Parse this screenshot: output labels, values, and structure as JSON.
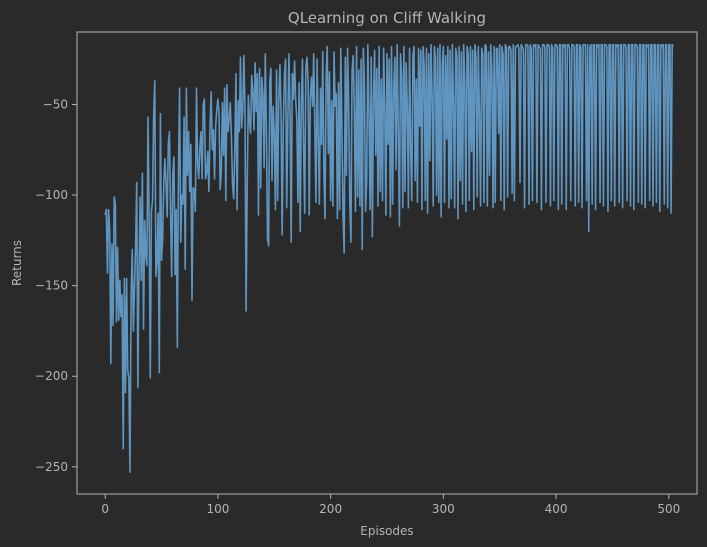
{
  "chart_data": {
    "type": "line",
    "title": "QLearning on Cliff Walking",
    "xlabel": "Episodes",
    "ylabel": "Returns",
    "xlim": [
      -25,
      525
    ],
    "ylim": [
      -265,
      -10
    ],
    "xticks": [
      0,
      100,
      200,
      300,
      400,
      500
    ],
    "yticks": [
      -250,
      -200,
      -150,
      -100,
      -50
    ],
    "grid": false,
    "legend": "none",
    "colors": {
      "background": "#2a2a2a",
      "axes": "#b4b4b4",
      "line": "#5f95bf"
    },
    "series": [
      {
        "values": [
          -111,
          -108,
          -143,
          -108,
          -119,
          -193,
          -127,
          -172,
          -101,
          -105,
          -170,
          -129,
          -169,
          -147,
          -167,
          -155,
          -240,
          -146,
          -209,
          -146,
          -197,
          -201,
          -253,
          -155,
          -130,
          -175,
          -152,
          -127,
          -93,
          -206,
          -143,
          -101,
          -147,
          -88,
          -174,
          -114,
          -133,
          -139,
          -57,
          -112,
          -201,
          -109,
          -103,
          -56,
          -37,
          -145,
          -136,
          -110,
          -198,
          -55,
          -136,
          -124,
          -93,
          -80,
          -94,
          -112,
          -72,
          -65,
          -110,
          -145,
          -88,
          -79,
          -144,
          -108,
          -184,
          -88,
          -41,
          -126,
          -100,
          -105,
          -57,
          -141,
          -41,
          -89,
          -65,
          -98,
          -72,
          -158,
          -96,
          -97,
          -109,
          -41,
          -82,
          -91,
          -74,
          -65,
          -91,
          -50,
          -47,
          -91,
          -88,
          -76,
          -98,
          -62,
          -43,
          -75,
          -64,
          -91,
          -62,
          -53,
          -47,
          -55,
          -97,
          -87,
          -49,
          -78,
          -41,
          -103,
          -39,
          -65,
          -58,
          -49,
          -69,
          -94,
          -102,
          -75,
          -33,
          -108,
          -48,
          -65,
          -24,
          -63,
          -54,
          -23,
          -51,
          -164,
          -94,
          -45,
          -59,
          -66,
          -34,
          -43,
          -64,
          -27,
          -54,
          -33,
          -111,
          -30,
          -96,
          -35,
          -45,
          -85,
          -22,
          -62,
          -124,
          -128,
          -37,
          -30,
          -92,
          -51,
          -66,
          -108,
          -31,
          -103,
          -47,
          -28,
          -54,
          -122,
          -62,
          -34,
          -25,
          -107,
          -60,
          -22,
          -56,
          -126,
          -33,
          -47,
          -26,
          -48,
          -58,
          -104,
          -38,
          -120,
          -50,
          -25,
          -74,
          -110,
          -30,
          -24,
          -37,
          -111,
          -46,
          -35,
          -51,
          -22,
          -64,
          -104,
          -25,
          -69,
          -105,
          -41,
          -72,
          -21,
          -86,
          -113,
          -34,
          -18,
          -77,
          -32,
          -103,
          -48,
          -106,
          -21,
          -51,
          -44,
          -113,
          -38,
          -108,
          -19,
          -64,
          -111,
          -132,
          -24,
          -89,
          -19,
          -49,
          -104,
          -126,
          -32,
          -23,
          -53,
          -109,
          -18,
          -101,
          -31,
          -106,
          -25,
          -130,
          -19,
          -39,
          -109,
          -92,
          -17,
          -55,
          -108,
          -24,
          -123,
          -46,
          -20,
          -78,
          -30,
          -106,
          -18,
          -98,
          -36,
          -103,
          -19,
          -52,
          -111,
          -22,
          -72,
          -25,
          -112,
          -18,
          -105,
          -41,
          -24,
          -86,
          -17,
          -64,
          -117,
          -22,
          -34,
          -107,
          -18,
          -98,
          -27,
          -51,
          -107,
          -19,
          -74,
          -103,
          -23,
          -18,
          -92,
          -36,
          -104,
          -19,
          -62,
          -20,
          -108,
          -18,
          -29,
          -103,
          -19,
          -110,
          -22,
          -81,
          -17,
          -44,
          -106,
          -18,
          -25,
          -100,
          -19,
          -104,
          -17,
          -112,
          -28,
          -18,
          -104,
          -23,
          -69,
          -18,
          -107,
          -20,
          -102,
          -17,
          -49,
          -107,
          -19,
          -23,
          -113,
          -18,
          -92,
          -21,
          -105,
          -17,
          -37,
          -109,
          -18,
          -22,
          -103,
          -18,
          -76,
          -20,
          -108,
          -17,
          -24,
          -101,
          -18,
          -56,
          -106,
          -19,
          -22,
          -104,
          -17,
          -18,
          -106,
          -21,
          -89,
          -17,
          -31,
          -107,
          -18,
          -104,
          -19,
          -19,
          -66,
          -17,
          -103,
          -18,
          -23,
          -108,
          -17,
          -19,
          -101,
          -18,
          -18,
          -20,
          -99,
          -17,
          -103,
          -18,
          -18,
          -17,
          -19,
          -93,
          -17,
          -18,
          -20,
          -107,
          -17,
          -17,
          -18,
          -105,
          -17,
          -19,
          -103,
          -17,
          -18,
          -17,
          -104,
          -17,
          -18,
          -19,
          -108,
          -17,
          -17,
          -18,
          -104,
          -17,
          -17,
          -18,
          -106,
          -17,
          -19,
          -103,
          -17,
          -17,
          -18,
          -108,
          -17,
          -17,
          -105,
          -17,
          -18,
          -17,
          -108,
          -17,
          -17,
          -19,
          -103,
          -17,
          -17,
          -18,
          -106,
          -17,
          -17,
          -104,
          -17,
          -18,
          -107,
          -17,
          -17,
          -17,
          -103,
          -17,
          -120,
          -18,
          -17,
          -105,
          -17,
          -17,
          -108,
          -17,
          -18,
          -17,
          -104,
          -17,
          -17,
          -106,
          -17,
          -17,
          -18,
          -109,
          -17,
          -17,
          -103,
          -17,
          -17,
          -106,
          -17,
          -18,
          -17,
          -104,
          -17,
          -17,
          -107,
          -17,
          -17,
          -18,
          -103,
          -17,
          -17,
          -106,
          -17,
          -17,
          -108,
          -17,
          -17,
          -18,
          -104,
          -17,
          -17,
          -105,
          -17,
          -17,
          -107,
          -17,
          -18,
          -17,
          -103,
          -17,
          -17,
          -106,
          -17,
          -17,
          -104,
          -17,
          -17,
          -109,
          -17,
          -18,
          -17,
          -105,
          -17,
          -17,
          -107,
          -17,
          -17,
          -110,
          -17,
          -18
        ]
      }
    ]
  }
}
